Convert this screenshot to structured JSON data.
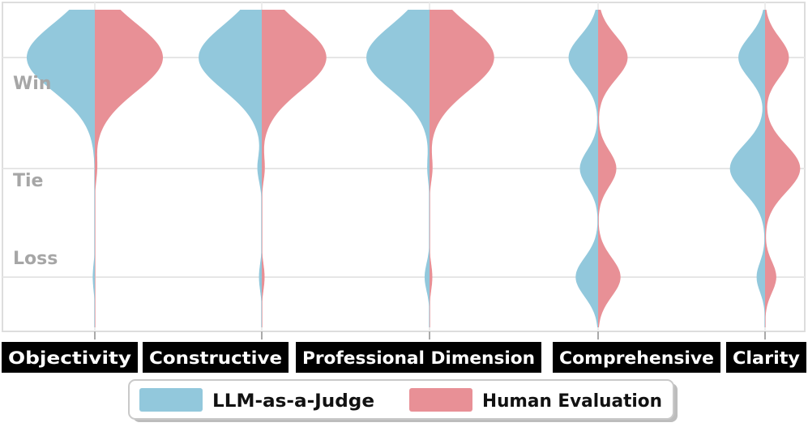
{
  "chart_data": {
    "type": "violin",
    "title": "",
    "xlabel": "",
    "ylabel": "",
    "categories": [
      "Objectivity",
      "Constructive",
      "Professional Dimension",
      "Comprehensive",
      "Clarity"
    ],
    "y_levels": [
      "Win",
      "Tie",
      "Loss"
    ],
    "series": [
      {
        "name": "LLM-as-a-Judge",
        "color": "#92C8DC",
        "values": [
          {
            "Win": 0.97,
            "Tie": 0.0,
            "Loss": 0.03
          },
          {
            "Win": 0.9,
            "Tie": 0.06,
            "Loss": 0.04
          },
          {
            "Win": 0.9,
            "Tie": 0.03,
            "Loss": 0.07
          },
          {
            "Win": 0.42,
            "Tie": 0.26,
            "Loss": 0.32
          },
          {
            "Win": 0.38,
            "Tie": 0.5,
            "Loss": 0.12
          }
        ]
      },
      {
        "name": "Human Evaluation",
        "color": "#E89096",
        "values": [
          {
            "Win": 0.97,
            "Tie": 0.03,
            "Loss": 0.0
          },
          {
            "Win": 0.92,
            "Tie": 0.04,
            "Loss": 0.04
          },
          {
            "Win": 0.92,
            "Tie": 0.04,
            "Loss": 0.04
          },
          {
            "Win": 0.42,
            "Tie": 0.26,
            "Loss": 0.32
          },
          {
            "Win": 0.34,
            "Tie": 0.5,
            "Loss": 0.16
          }
        ]
      }
    ],
    "grid": true,
    "legend_position": "bottom"
  }
}
